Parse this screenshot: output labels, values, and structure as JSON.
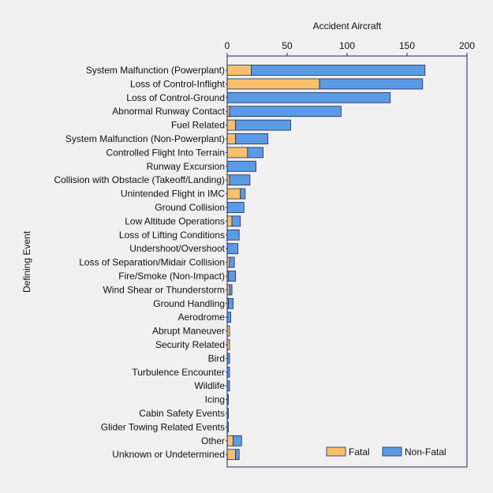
{
  "chart_data": {
    "type": "bar",
    "orientation": "horizontal",
    "stacked": true,
    "xlabel": "Accident Aircraft",
    "ylabel": "Defining Event",
    "xlim": [
      0,
      200
    ],
    "xticks": [
      "0",
      "50",
      "100",
      "150",
      "200"
    ],
    "xaxis_position": "top",
    "grid": false,
    "legend_position": "bottom-right",
    "categories": [
      "System Malfunction (Powerplant)",
      "Loss of Control-Inflight",
      "Loss of Control-Ground",
      "Abnormal Runway Contact",
      "Fuel Related",
      "System Malfunction (Non-Powerplant)",
      "Controlled Flight Into Terrain",
      "Runway Excursion",
      "Collision with Obstacle (Takeoff/Landing)",
      "Unintended Flight in IMC",
      "Ground Collision",
      "Low Altitude Operations",
      "Loss of Lifting Conditions",
      "Undershoot/Overshoot",
      "Loss of Separation/Midair Collision",
      "Fire/Smoke (Non-Impact)",
      "Wind Shear or Thunderstorm",
      "Ground Handling",
      "Aerodrome",
      "Abrupt Maneuver",
      "Security Related",
      "Bird",
      "Turbulence Encounter",
      "Wildlife",
      "Icing",
      "Cabin Safety Events",
      "Glider Towing Related Events",
      "Other",
      "Unknown or Undetermined"
    ],
    "series": [
      {
        "name": "Fatal",
        "color": "#f7c06a",
        "values": [
          20,
          77,
          0,
          2,
          7,
          7,
          17,
          0,
          2,
          11,
          0,
          4,
          0,
          0,
          2,
          1,
          2,
          1,
          0,
          2,
          2,
          0,
          0,
          0,
          0,
          0,
          0,
          5,
          7
        ]
      },
      {
        "name": "Non-Fatal",
        "color": "#5b9be6",
        "values": [
          145,
          86,
          136,
          93,
          46,
          27,
          13,
          24,
          17,
          4,
          14,
          7,
          10,
          9,
          4,
          6,
          2,
          4,
          3,
          0,
          0,
          2,
          2,
          2,
          1,
          1,
          1,
          7,
          3
        ]
      }
    ]
  }
}
